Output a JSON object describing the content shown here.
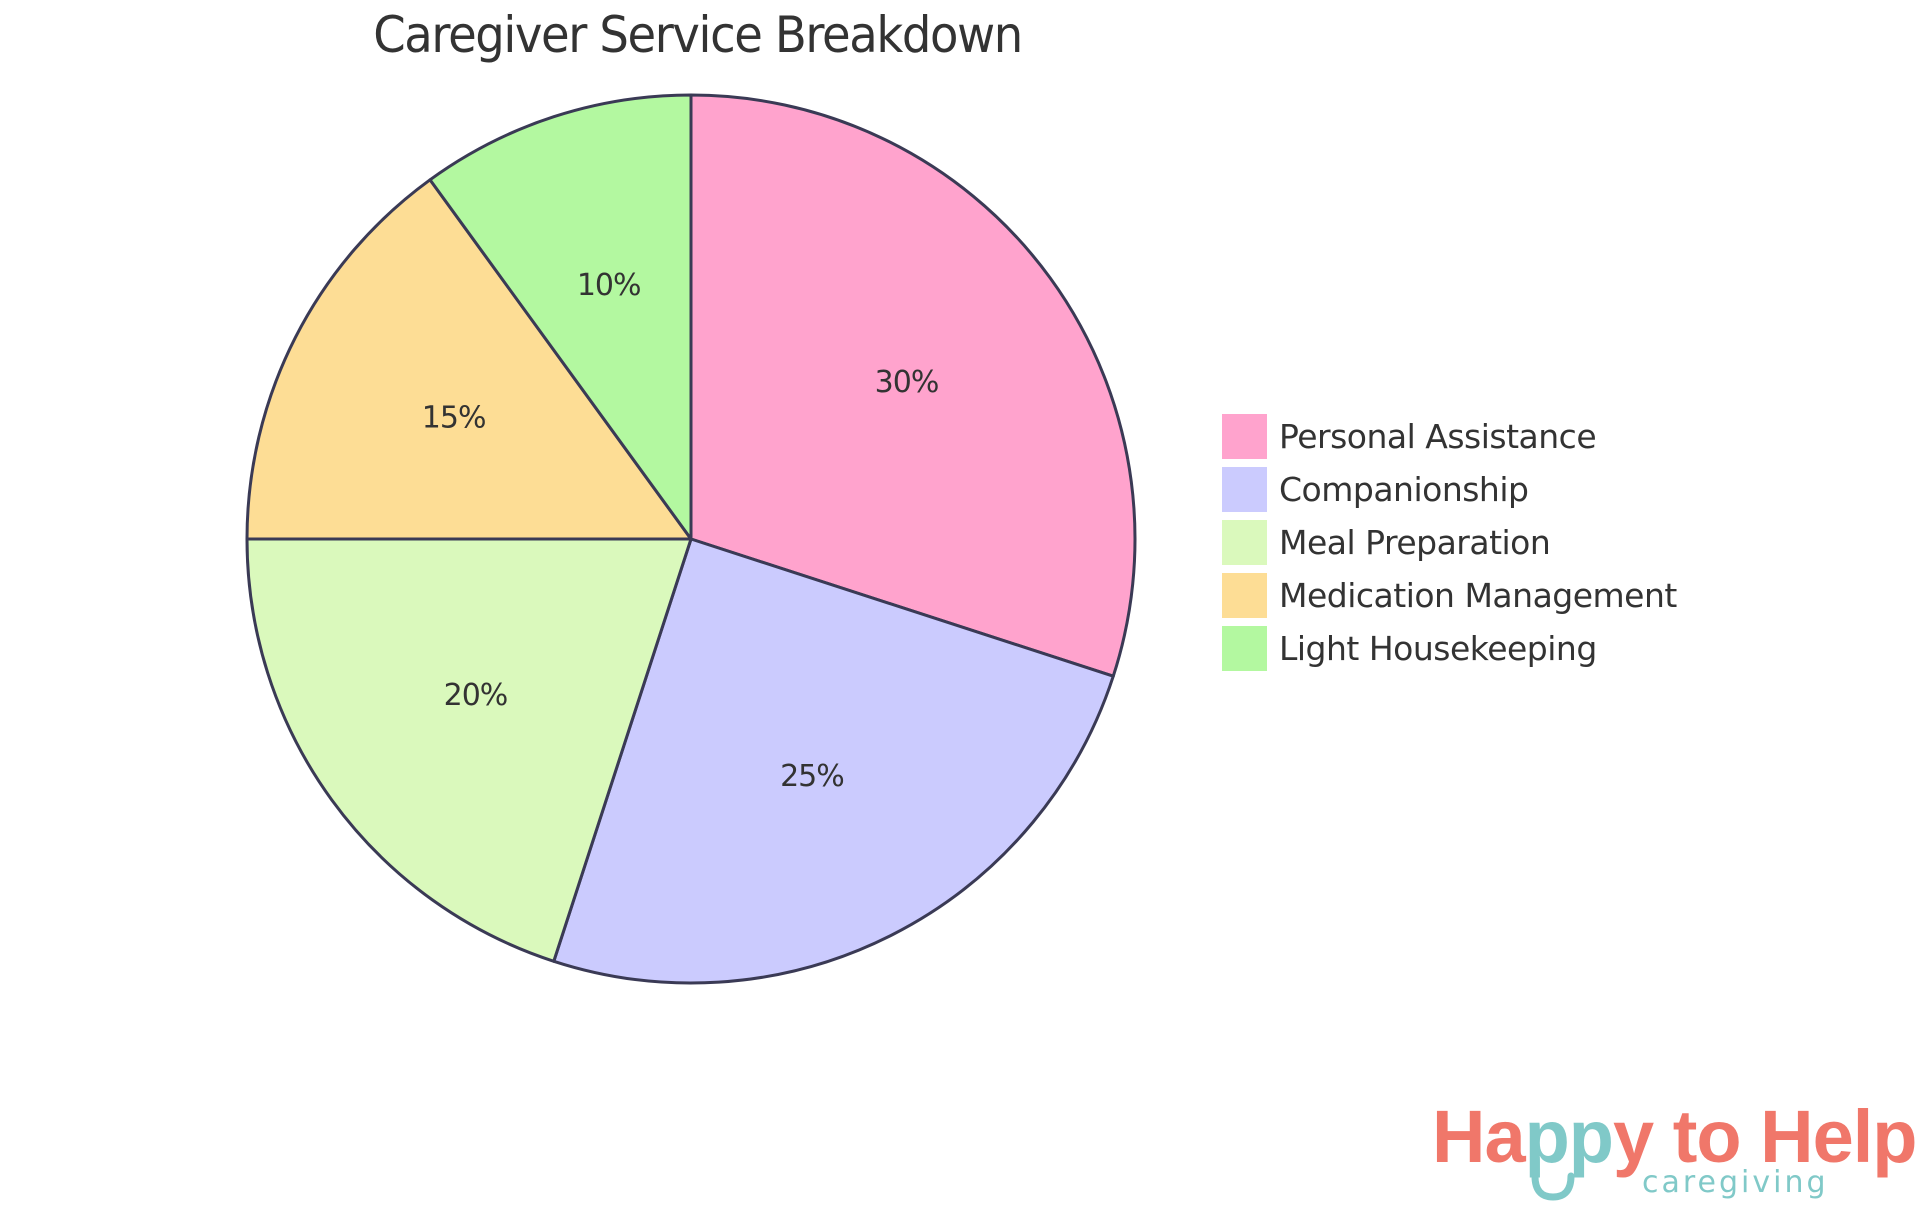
{
  "chart_data": {
    "type": "pie",
    "title": "Caregiver Service Breakdown",
    "categories": [
      "Personal Assistance",
      "Companionship",
      "Meal Preparation",
      "Medication Management",
      "Light Housekeeping"
    ],
    "values": [
      30,
      25,
      20,
      15,
      10
    ],
    "labels": [
      "30%",
      "25%",
      "20%",
      "15%",
      "10%"
    ],
    "colors": [
      "#FFA3CD",
      "#CBCBFE",
      "#DAF9BC",
      "#FDDD95",
      "#B3F8A0"
    ],
    "start_angle": "top (12 o'clock)",
    "direction": "clockwise",
    "legend_position": "right",
    "stroke_color": "#3A3A55"
  },
  "title": "Caregiver Service Breakdown",
  "legend": {
    "items": [
      {
        "label": "Personal Assistance",
        "color": "#FFA3CD"
      },
      {
        "label": "Companionship",
        "color": "#CBCBFE"
      },
      {
        "label": "Meal Preparation",
        "color": "#DAF9BC"
      },
      {
        "label": "Medication Management",
        "color": "#FDDD95"
      },
      {
        "label": "Light Housekeeping",
        "color": "#B3F8A0"
      }
    ]
  },
  "logo": {
    "part1": "Ha",
    "part2": "pp",
    "part3": "y to Help",
    "subtitle": "caregiving",
    "coral": "#F0776A",
    "teal": "#80C9C8"
  }
}
